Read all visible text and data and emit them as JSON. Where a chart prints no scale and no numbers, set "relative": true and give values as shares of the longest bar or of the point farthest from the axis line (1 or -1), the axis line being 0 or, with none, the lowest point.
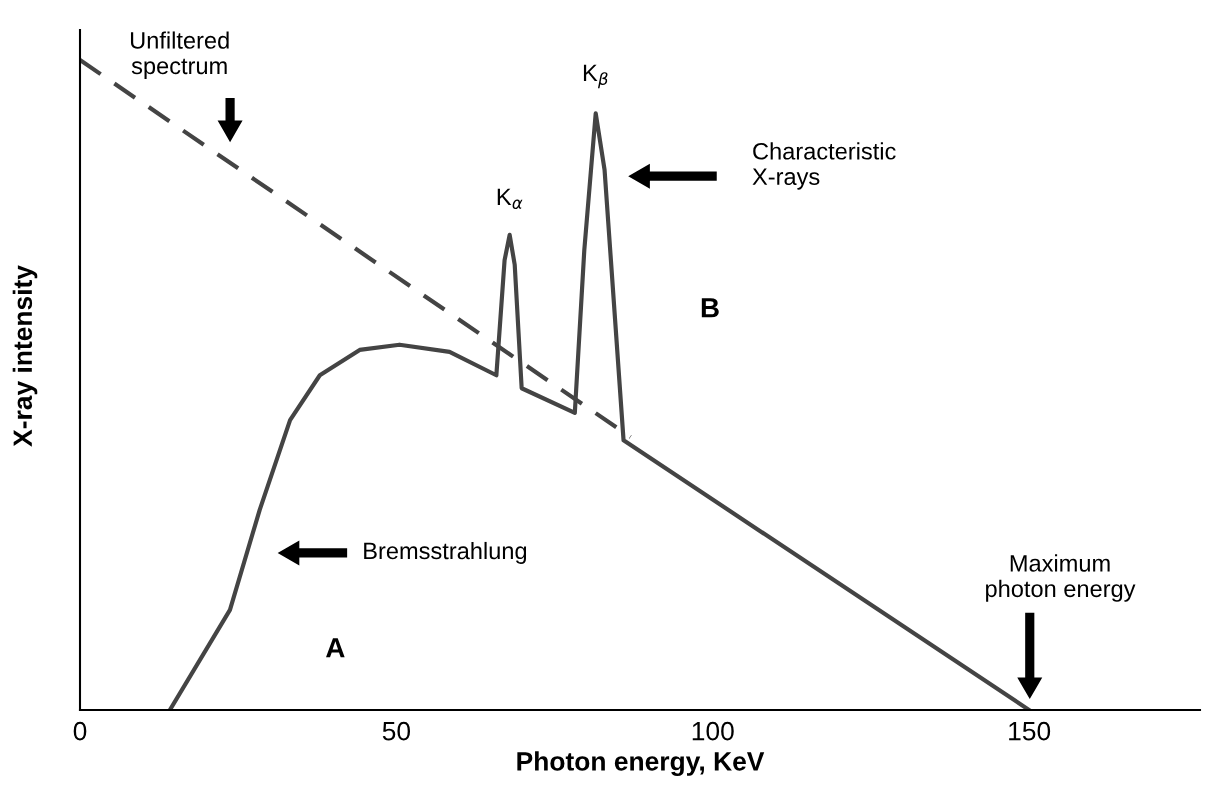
{
  "chart_data": {
    "type": "line",
    "relative": true,
    "xlabel": "Photon energy, KeV",
    "ylabel": "X-ray intensity",
    "xlim": [
      0,
      177
    ],
    "xticks": [
      0,
      50,
      100,
      150
    ],
    "grid": false,
    "legend": false,
    "tick_labels": "x",
    "series": [
      {
        "color": "#444444",
        "line_style": "dashed",
        "x": [
          0,
          87
        ],
        "values": [
          1,
          0.42
        ]
      },
      {
        "color": "#444444",
        "line_style": "solid",
        "x": [
          14.2,
          23.7,
          28.4,
          33.2,
          37.9,
          44.2,
          50.5,
          58.4,
          65.8,
          67.1,
          67.9,
          68.7,
          69.8,
          78.2,
          79.7,
          81.5,
          82.9,
          85.9,
          150
        ],
        "values": [
          0,
          0.154,
          0.308,
          0.446,
          0.515,
          0.554,
          0.562,
          0.551,
          0.515,
          0.692,
          0.731,
          0.685,
          0.495,
          0.457,
          0.708,
          0.918,
          0.831,
          0.415,
          0
        ]
      }
    ],
    "annotations": [
      "Unfiltered\nspectrum",
      {
        "text": "K$_{α}$",
        "x": 67.9,
        "y": 0.731
      },
      {
        "text": "K$_{β}$",
        "x": 81.5,
        "y": 0.918
      },
      "Characteristic\nX-rays",
      "B",
      "Bremsstrahlung",
      "A",
      "Maximum\nphoton energy"
    ]
  }
}
